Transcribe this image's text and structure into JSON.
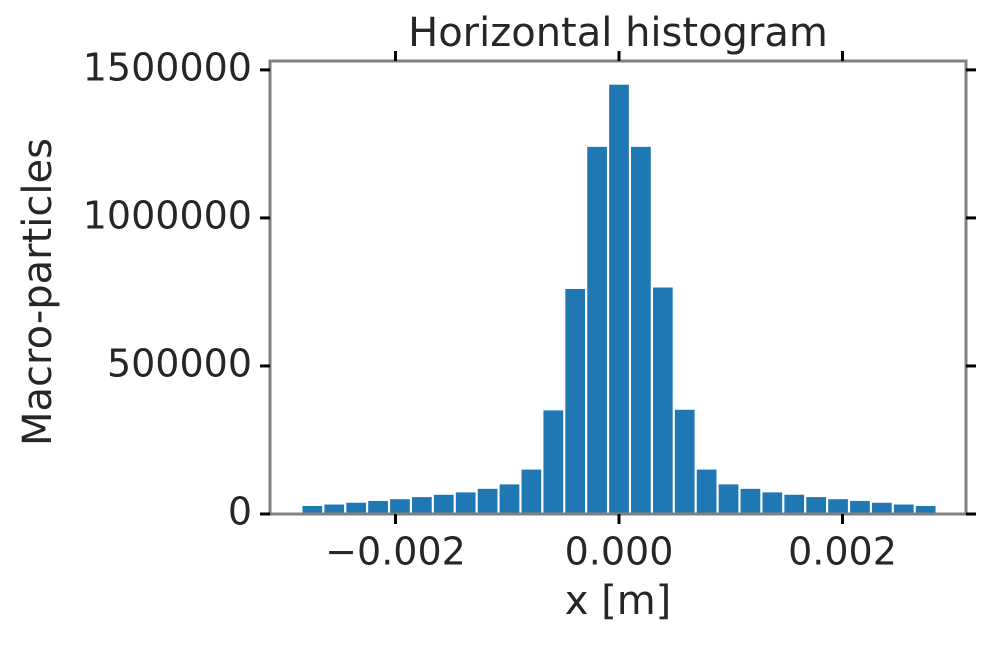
{
  "chart_data": {
    "type": "histogram",
    "title": "Horizontal histogram",
    "xlabel": "x [m]",
    "ylabel": "Macro-particles",
    "bins": [
      -0.002842,
      -0.002646,
      -0.00245,
      -0.002254,
      -0.002058,
      -0.001862,
      -0.001666,
      -0.00147,
      -0.001274,
      -0.001078,
      -0.000882,
      -0.000686,
      -0.00049,
      -0.000294,
      -9.8e-05,
      9.8e-05,
      0.000294,
      0.00049,
      0.000686,
      0.000882,
      0.001078,
      0.001274,
      0.00147,
      0.001666,
      0.001862,
      0.002058,
      0.002254,
      0.00245,
      0.002646,
      0.002842
    ],
    "values": [
      27000,
      32000,
      38000,
      44000,
      50000,
      57000,
      65000,
      73000,
      85000,
      100000,
      150000,
      350000,
      760000,
      1240000,
      1450000,
      1240000,
      765000,
      352000,
      150000,
      100000,
      85000,
      73000,
      65000,
      57000,
      50000,
      44000,
      38000,
      32000,
      27000
    ],
    "color": "#1f77b4",
    "xlim": [
      -0.003123,
      0.003105
    ],
    "ylim": [
      0,
      1530000
    ],
    "xticks": [
      {
        "value": -0.002,
        "label": "−0.002"
      },
      {
        "value": 0,
        "label": "0.000"
      },
      {
        "value": 0.002,
        "label": "0.002"
      }
    ],
    "yticks": [
      0,
      500000,
      1000000,
      1500000
    ]
  }
}
